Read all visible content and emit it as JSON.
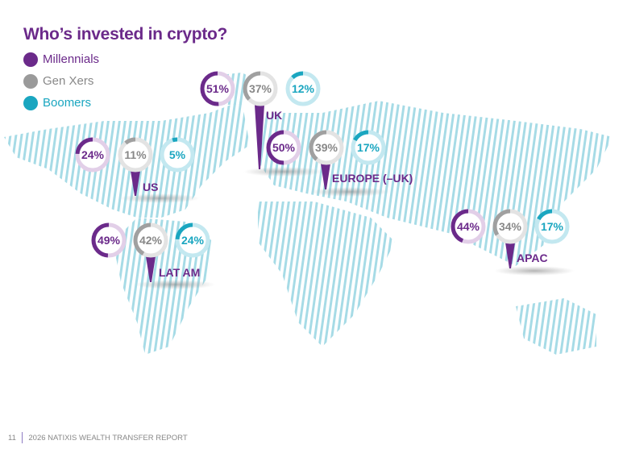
{
  "title": "Who’s invested in crypto?",
  "legend": [
    {
      "label": "Millennials",
      "color": "#6b2a8a"
    },
    {
      "label": "Gen Xers",
      "color": "#9a9a9a"
    },
    {
      "label": "Boomers",
      "color": "#1aa6c0"
    }
  ],
  "regions": [
    {
      "name": "UK",
      "values": [
        51,
        37,
        12
      ]
    },
    {
      "name": "EUROPE (–UK)",
      "values": [
        50,
        39,
        17
      ]
    },
    {
      "name": "US",
      "values": [
        24,
        11,
        5
      ]
    },
    {
      "name": "LAT AM",
      "values": [
        49,
        42,
        24
      ]
    },
    {
      "name": "APAC",
      "values": [
        44,
        34,
        17
      ]
    }
  ],
  "footer": {
    "page": "11",
    "text": "2026 NATIXIS WEALTH TRANSFER REPORT"
  }
}
